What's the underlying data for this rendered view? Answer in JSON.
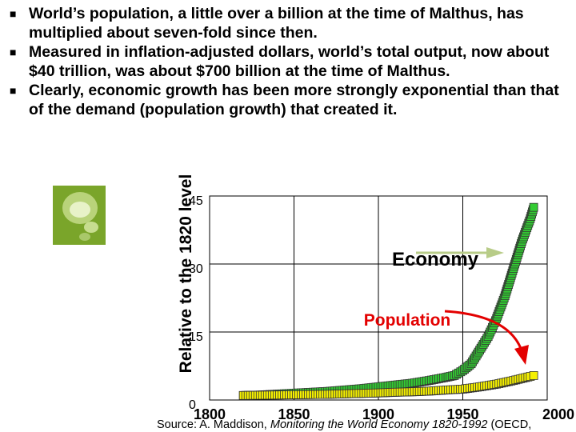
{
  "bullets": [
    {
      "text": "World’s population, a little over a billion at the time of Malthus, has multiplied about seven-fold since then."
    },
    {
      "text": "Measured in inflation-adjusted dollars, world’s total output, now about $40 trillion, was about $700 billion at the time of Malthus."
    },
    {
      "text": "Clearly, economic growth has been more strongly exponential than that of the demand (population growth) that created it."
    }
  ],
  "bullet_icon": "square-bullet-icon",
  "decoration_icon": "green-bubbles-icon",
  "chart_data": {
    "type": "line",
    "title": "",
    "xlabel": "",
    "ylabel": "Relative to the 1820 level",
    "xlim": [
      1800,
      2000
    ],
    "ylim": [
      0,
      45
    ],
    "x_ticks": [
      1800,
      1850,
      1900,
      1950,
      2000
    ],
    "y_ticks": [
      0,
      15,
      30,
      45
    ],
    "grid": true,
    "series": [
      {
        "name": "Economy",
        "color": "#33cc33",
        "marker": "square",
        "x": [
          1820,
          1830,
          1840,
          1850,
          1860,
          1870,
          1880,
          1890,
          1900,
          1910,
          1920,
          1930,
          1940,
          1945,
          1950,
          1955,
          1960,
          1965,
          1970,
          1975,
          1980,
          1985,
          1990,
          1992
        ],
        "values": [
          1.0,
          1.1,
          1.3,
          1.5,
          1.7,
          1.9,
          2.2,
          2.5,
          2.9,
          3.3,
          3.7,
          4.3,
          5.0,
          5.4,
          6.5,
          8.0,
          11.0,
          14.0,
          18.0,
          23.0,
          29.0,
          35.0,
          40.0,
          42.5
        ]
      },
      {
        "name": "Population",
        "color": "#f5f000",
        "marker": "square",
        "x": [
          1820,
          1830,
          1840,
          1850,
          1860,
          1870,
          1880,
          1890,
          1900,
          1910,
          1920,
          1930,
          1940,
          1950,
          1960,
          1970,
          1980,
          1990,
          1992
        ],
        "values": [
          1.0,
          1.05,
          1.1,
          1.15,
          1.2,
          1.25,
          1.35,
          1.45,
          1.55,
          1.7,
          1.8,
          1.95,
          2.2,
          2.4,
          2.9,
          3.5,
          4.3,
          5.2,
          5.4
        ]
      }
    ],
    "annotations": [
      {
        "text": "Economy",
        "arrow_color": "#b8cc88"
      },
      {
        "text": "Population",
        "arrow_color": "#e30000"
      }
    ]
  },
  "source": {
    "prefix": "Source: A. Maddison, ",
    "title": "Monitoring the World Economy 1820-1992",
    "suffix": " (OECD,"
  }
}
